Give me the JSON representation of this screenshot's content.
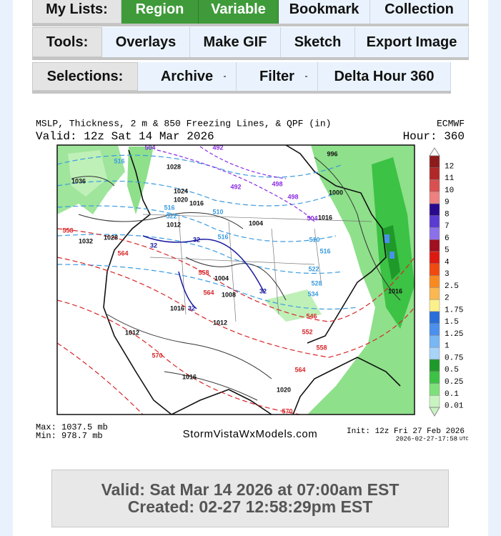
{
  "nav": {
    "rows": [
      {
        "label": "My Lists:",
        "buttons": [
          "Region",
          "Variable",
          "Bookmark",
          "Collection"
        ]
      },
      {
        "label": "Tools:",
        "buttons": [
          "Overlays",
          "Make GIF",
          "Sketch",
          "Export Image"
        ]
      },
      {
        "label": "Selections:",
        "buttons": [
          "Archive",
          "Filter",
          "Delta Hour 360"
        ]
      }
    ]
  },
  "map": {
    "title": "MSLP, Thickness, 2 m & 850 Freezing Lines, & QPF (in)",
    "model": "ECMWF",
    "valid": "Valid: 12z Sat 14 Mar 2026",
    "hour": "Hour: 360",
    "max": "Max: 1037.5 mb",
    "min": "Min: 978.7 mb",
    "site": "StormVistaWxModels.com",
    "init": "Init: 12z Fri 27 Feb 2026",
    "stamp": "2026-02-27-17:58",
    "stamp_unit": "UTC",
    "colorbar": [
      {
        "label": "12",
        "color": "#8c1c1c"
      },
      {
        "label": "11",
        "color": "#b02828"
      },
      {
        "label": "10",
        "color": "#d85050"
      },
      {
        "label": "9",
        "color": "#ee8080"
      },
      {
        "label": "8",
        "color": "#2a0a8c"
      },
      {
        "label": "7",
        "color": "#5a3cd0"
      },
      {
        "label": "6",
        "color": "#8c70ea"
      },
      {
        "label": "5",
        "color": "#a01020"
      },
      {
        "label": "4",
        "color": "#dd1a10"
      },
      {
        "label": "3",
        "color": "#f04a10"
      },
      {
        "label": "2.5",
        "color": "#f88a20"
      },
      {
        "label": "2",
        "color": "#fbb850"
      },
      {
        "label": "1.75",
        "color": "#fbf08a"
      },
      {
        "label": "1.5",
        "color": "#2a6ed8"
      },
      {
        "label": "1.25",
        "color": "#4a90ec"
      },
      {
        "label": "1",
        "color": "#78b6f4"
      },
      {
        "label": "0.75",
        "color": "#a8d4fa"
      },
      {
        "label": "0.5",
        "color": "#1f9a2a"
      },
      {
        "label": "0.25",
        "color": "#3cc244"
      },
      {
        "label": "0.1",
        "color": "#7ee07a"
      },
      {
        "label": "0.01",
        "color": "#c8f4c0"
      }
    ],
    "contour_groups": [
      {
        "color": "#111111",
        "labels": [
          "1036",
          "1032",
          "1028",
          "1028",
          "1024",
          "1020",
          "1016",
          "1012",
          "1004",
          "1004",
          "1008",
          "1012",
          "1012",
          "1016",
          "1020",
          "1016",
          "1000",
          "996",
          "1016",
          "1016"
        ]
      },
      {
        "color": "#d8262a",
        "labels": [
          "558",
          "564",
          "558",
          "564",
          "546",
          "552",
          "558",
          "564",
          "570",
          "570"
        ]
      },
      {
        "color": "#3a9be0",
        "labels": [
          "516",
          "516",
          "522",
          "510",
          "516",
          "522",
          "528",
          "534",
          "516",
          "510"
        ]
      },
      {
        "color": "#8a2be2",
        "labels": [
          "504",
          "492",
          "498",
          "498",
          "504",
          "492"
        ]
      },
      {
        "color": "#1a1aa0",
        "labels": [
          "32",
          "32",
          "32",
          "32"
        ]
      }
    ]
  },
  "footer": {
    "valid": "Valid: Sat Mar 14 2026 at 07:00am EST",
    "created": "Created: 02-27 12:58:29pm EST"
  }
}
